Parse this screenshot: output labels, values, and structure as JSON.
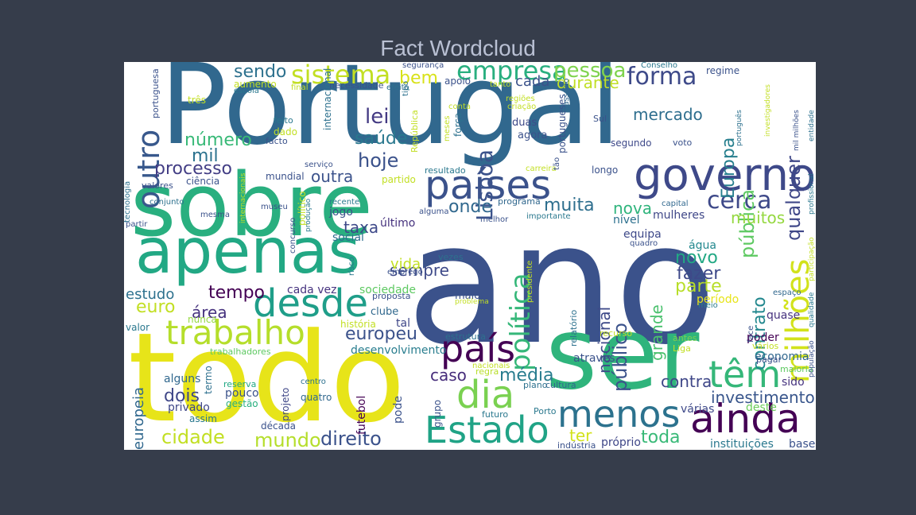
{
  "title": "Fact Wordcloud",
  "words": [
    {
      "t": "ano",
      "c": "#3b528b"
    },
    {
      "t": "Portugal",
      "c": "#31688e"
    },
    {
      "t": "todo",
      "c": "#e7e419"
    },
    {
      "t": "ser",
      "c": "#2fb47c"
    },
    {
      "t": "sobre",
      "c": "#29af7f"
    },
    {
      "t": "apenas",
      "c": "#22a884"
    },
    {
      "t": "governo",
      "c": "#3e4989"
    },
    {
      "t": "países",
      "c": "#3b528b"
    },
    {
      "t": "desde",
      "c": "#1f9e89"
    },
    {
      "t": "trabalho",
      "c": "#b5de2b"
    },
    {
      "t": "país",
      "c": "#440154"
    },
    {
      "t": "dia",
      "c": "#7ad151"
    },
    {
      "t": "Estado",
      "c": "#20a386"
    },
    {
      "t": "menos",
      "c": "#2c728e"
    },
    {
      "t": "ainda",
      "c": "#440154"
    },
    {
      "t": "têm",
      "c": "#35b779"
    },
    {
      "t": "milhões",
      "c": "#d2e21b"
    },
    {
      "t": "outro",
      "c": "#38588c"
    },
    {
      "t": "sistema",
      "c": "#c2df23"
    },
    {
      "t": "empresa",
      "c": "#29af7f"
    },
    {
      "t": "pessoa",
      "c": "#7fd34e"
    },
    {
      "t": "forma",
      "c": "#3e4a89"
    },
    {
      "t": "política",
      "c": "#35b779"
    },
    {
      "t": "Lisboa",
      "c": "#3b528b"
    },
    {
      "t": "cerca",
      "c": "#3e4989"
    },
    {
      "t": "qualquer",
      "c": "#3f4788"
    },
    {
      "t": "Europa",
      "c": "#277f8e"
    },
    {
      "t": "pública",
      "c": "#5ec962"
    },
    {
      "t": "contrato",
      "c": "#23888e"
    },
    {
      "t": "processo",
      "c": "#433e85"
    },
    {
      "t": "hoje",
      "c": "#3b528b"
    },
    {
      "t": "saúde",
      "c": "#2a788e"
    },
    {
      "t": "lei",
      "c": "#443a83"
    },
    {
      "t": "número",
      "c": "#38b977"
    },
    {
      "t": "mil",
      "c": "#2c728e"
    },
    {
      "t": "sendo",
      "c": "#2d718e"
    },
    {
      "t": "bem",
      "c": "#d8e219"
    },
    {
      "t": "cada",
      "c": "#3b528b"
    },
    {
      "t": "durante",
      "c": "#c0df25"
    },
    {
      "t": "mercado",
      "c": "#2e6e8e"
    },
    {
      "t": "outra",
      "c": "#3b528b"
    },
    {
      "t": "muita",
      "c": "#2e6f8e"
    },
    {
      "t": "onde",
      "c": "#31688e"
    },
    {
      "t": "nova",
      "c": "#2fb47c"
    },
    {
      "t": "grande",
      "c": "#4ac16d"
    },
    {
      "t": "público",
      "c": "#3b528b"
    },
    {
      "t": "nacional",
      "c": "#3e4a89"
    },
    {
      "t": "novo",
      "c": "#22a884"
    },
    {
      "t": "fazer",
      "c": "#3e4989"
    },
    {
      "t": "parte",
      "c": "#b8de29"
    },
    {
      "t": "muitos",
      "c": "#95d840"
    },
    {
      "t": "tempo",
      "c": "#440154"
    },
    {
      "t": "euro",
      "c": "#c2df23"
    },
    {
      "t": "área",
      "c": "#46327e"
    },
    {
      "t": "estudo",
      "c": "#2d718e"
    },
    {
      "t": "sempre",
      "c": "#3e4a89"
    },
    {
      "t": "vida",
      "c": "#c2df23"
    },
    {
      "t": "europeu",
      "c": "#3b528b"
    },
    {
      "t": "taxa",
      "c": "#3e4989"
    },
    {
      "t": "caso",
      "c": "#472d7b"
    },
    {
      "t": "média",
      "c": "#287c8e"
    },
    {
      "t": "contra",
      "c": "#3f4788"
    },
    {
      "t": "investimento",
      "c": "#39568c"
    },
    {
      "t": "dois",
      "c": "#3f4788"
    },
    {
      "t": "cidade",
      "c": "#c2df23"
    },
    {
      "t": "mundo",
      "c": "#b5de2b"
    },
    {
      "t": "direito",
      "c": "#3b528b"
    },
    {
      "t": "ter",
      "c": "#d2e21b"
    },
    {
      "t": "toda",
      "c": "#38b977"
    },
    {
      "t": "europeia",
      "c": "#31688e"
    },
    {
      "t": "várias",
      "c": "#3e4989"
    },
    {
      "t": "deste",
      "c": "#6ccd5a"
    },
    {
      "t": "instituições",
      "c": "#2a788e"
    },
    {
      "t": "base",
      "c": "#3b528b"
    },
    {
      "t": "próprio",
      "c": "#3f4788"
    },
    {
      "t": "sociedade",
      "c": "#5ec962"
    },
    {
      "t": "cada vez",
      "c": "#46337f"
    },
    {
      "t": "social",
      "c": "#2e6e8e"
    },
    {
      "t": "jogo",
      "c": "#3b528b"
    },
    {
      "t": "último",
      "c": "#46327e"
    },
    {
      "t": "equipa",
      "c": "#3e4989"
    },
    {
      "t": "água",
      "c": "#23888e"
    },
    {
      "t": "nível",
      "c": "#2d708e"
    },
    {
      "t": "mulheres",
      "c": "#3f4788"
    },
    {
      "t": "período",
      "c": "#e7e419"
    },
    {
      "t": "quase",
      "c": "#46327e"
    },
    {
      "t": "poder",
      "c": "#440154"
    },
    {
      "t": "economia",
      "c": "#31688e"
    },
    {
      "t": "sido",
      "c": "#46337f"
    },
    {
      "t": "através",
      "c": "#3b528b"
    },
    {
      "t": "desenvolvimento",
      "c": "#287d8e"
    },
    {
      "t": "tal",
      "c": "#3f4788"
    },
    {
      "t": "clube",
      "c": "#31688e"
    },
    {
      "t": "maior",
      "c": "#3b528b"
    },
    {
      "t": "nunca",
      "c": "#95d840"
    },
    {
      "t": "valor",
      "c": "#2a788e"
    },
    {
      "t": "alguns",
      "c": "#31688e"
    },
    {
      "t": "privado",
      "c": "#3f4788"
    },
    {
      "t": "pouco",
      "c": "#3b528b"
    },
    {
      "t": "gestão",
      "c": "#29af7f"
    },
    {
      "t": "reserva",
      "c": "#22a884"
    },
    {
      "t": "quatro",
      "c": "#31688e"
    },
    {
      "t": "futebol",
      "c": "#440154"
    },
    {
      "t": "pode",
      "c": "#3b528b"
    },
    {
      "t": "grupo",
      "c": "#3b528b"
    },
    {
      "t": "projeto",
      "c": "#3f4788"
    },
    {
      "t": "termo",
      "c": "#2d708e"
    },
    {
      "t": "década",
      "c": "#3b528b"
    },
    {
      "t": "assim",
      "c": "#2a788e"
    },
    {
      "t": "trabalhadores",
      "c": "#5ec962"
    },
    {
      "t": "história",
      "c": "#c2df23"
    },
    {
      "t": "estrutura",
      "c": "#2d718e"
    },
    {
      "t": "regra",
      "c": "#b8de29"
    },
    {
      "t": "nacionais",
      "c": "#c2df23"
    },
    {
      "t": "plano",
      "c": "#2d718e"
    },
    {
      "t": "cultura",
      "c": "#31688e"
    },
    {
      "t": "futuro",
      "c": "#2a788e"
    },
    {
      "t": "Porto",
      "c": "#2a788e"
    },
    {
      "t": "indústria",
      "c": "#3b528b"
    },
    {
      "t": "relatório",
      "c": "#2d718e"
    },
    {
      "t": "recurso",
      "c": "#c2df23"
    },
    {
      "t": "antes",
      "c": "#7ad151"
    },
    {
      "t": "Liga",
      "c": "#c2df23"
    },
    {
      "t": "vários",
      "c": "#c2df23"
    },
    {
      "t": "pagar",
      "c": "#3b528b"
    },
    {
      "t": "maioria",
      "c": "#5ec962"
    },
    {
      "t": "face",
      "c": "#3b528b"
    },
    {
      "t": "população",
      "c": "#3b528b"
    },
    {
      "t": "qualidade",
      "c": "#2a788e"
    },
    {
      "t": "espaço",
      "c": "#31688e"
    },
    {
      "t": "meio",
      "c": "#287c8e"
    },
    {
      "t": "participação",
      "c": "#c2df23"
    },
    {
      "t": "profissional",
      "c": "#2a788e"
    },
    {
      "t": "entidade",
      "c": "#2d718e"
    },
    {
      "t": "mil milhões",
      "c": "#3b528b"
    },
    {
      "t": "investigadores",
      "c": "#c2df23"
    },
    {
      "t": "português",
      "c": "#2d718e"
    },
    {
      "t": "regime",
      "c": "#3b528b"
    },
    {
      "t": "Conselho",
      "c": "#2a788e"
    },
    {
      "t": "voto",
      "c": "#3b528b"
    },
    {
      "t": "segundo",
      "c": "#3e4989"
    },
    {
      "t": "longo",
      "c": "#3b528b"
    },
    {
      "t": "Sul",
      "c": "#3b528b"
    },
    {
      "t": "agora",
      "c": "#3b528b"
    },
    {
      "t": "duas",
      "c": "#3e4a89"
    },
    {
      "t": "regiões",
      "c": "#c2df23"
    },
    {
      "t": "criação",
      "c": "#c2df23"
    },
    {
      "t": "portugueses",
      "c": "#3b528b"
    },
    {
      "t": "passado",
      "c": "#31688e"
    },
    {
      "t": "carreira",
      "c": "#c2df23"
    },
    {
      "t": "tão",
      "c": "#3b528b"
    },
    {
      "t": "programa",
      "c": "#31688e"
    },
    {
      "t": "importante",
      "c": "#2a788e"
    },
    {
      "t": "melhor",
      "c": "#3b528b"
    },
    {
      "t": "capital",
      "c": "#31688e"
    },
    {
      "t": "quadro",
      "c": "#3b528b"
    },
    {
      "t": "presidente",
      "c": "#c2df23"
    },
    {
      "t": "problema",
      "c": "#c2df23"
    },
    {
      "t": "vezes",
      "c": "#2d718e"
    },
    {
      "t": "emprego",
      "c": "#3b528b"
    },
    {
      "t": "proposta",
      "c": "#3b528b"
    },
    {
      "t": "risco",
      "c": "#2a788e"
    },
    {
      "t": "alguma",
      "c": "#3b528b"
    },
    {
      "t": "partido",
      "c": "#c2df23"
    },
    {
      "t": "resultado",
      "c": "#2a788e"
    },
    {
      "t": "República",
      "c": "#c2df23"
    },
    {
      "t": "força",
      "c": "#2d718e"
    },
    {
      "t": "meses",
      "c": "#c2df23"
    },
    {
      "t": "conta",
      "c": "#c2df23"
    },
    {
      "t": "tanto",
      "c": "#c2df23"
    },
    {
      "t": "apoio",
      "c": "#3b528b"
    },
    {
      "t": "tipo",
      "c": "#2d718e"
    },
    {
      "t": "internacional",
      "c": "#2d718e"
    },
    {
      "t": "necessidade",
      "c": "#3b528b"
    },
    {
      "t": "efeito",
      "c": "#2d718e"
    },
    {
      "t": "segurança",
      "c": "#3b528b"
    },
    {
      "t": "final",
      "c": "#c2df23"
    },
    {
      "t": "aumento",
      "c": "#c2df23"
    },
    {
      "t": "escola",
      "c": "#2a788e"
    },
    {
      "t": "três",
      "c": "#c2df23"
    },
    {
      "t": "portuguesa",
      "c": "#3b528b"
    },
    {
      "t": "feito",
      "c": "#2a788e"
    },
    {
      "t": "dado",
      "c": "#c2df23"
    },
    {
      "t": "facto",
      "c": "#3b528b"
    },
    {
      "t": "serviço",
      "c": "#3b528b"
    },
    {
      "t": "mundial",
      "c": "#3b528b"
    },
    {
      "t": "ciência",
      "c": "#3b528b"
    },
    {
      "t": "valores",
      "c": "#3b528b"
    },
    {
      "t": "tecnologia",
      "c": "#2d718e"
    },
    {
      "t": "conjunto",
      "c": "#2d718e"
    },
    {
      "t": "mesma",
      "c": "#3b528b"
    },
    {
      "t": "partir",
      "c": "#3b528b"
    },
    {
      "t": "internacionais",
      "c": "#c2df23"
    },
    {
      "t": "museu",
      "c": "#3b528b"
    },
    {
      "t": "político",
      "c": "#c2df23"
    },
    {
      "t": "produção",
      "c": "#2a788e"
    },
    {
      "t": "recente",
      "c": "#2a788e"
    },
    {
      "t": "concurso",
      "c": "#3b528b"
    },
    {
      "t": "centro",
      "c": "#2d718e"
    }
  ]
}
